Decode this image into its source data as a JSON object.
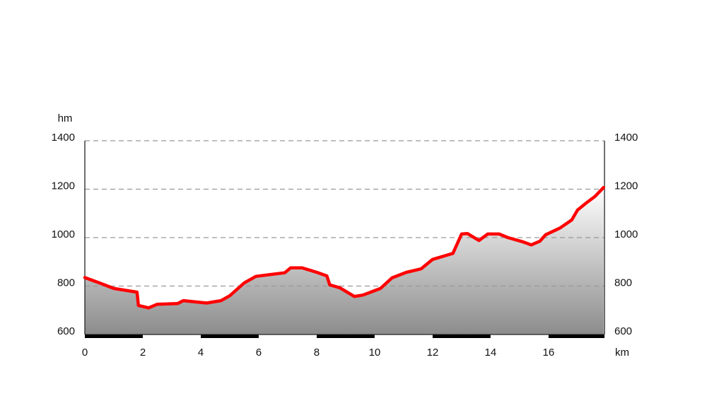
{
  "chart_data": {
    "type": "area",
    "y_label": "hm",
    "x_label": "km",
    "color": "#ff0000",
    "x": [
      0,
      0.5,
      1,
      1.8,
      1.85,
      2.2,
      2.5,
      3.2,
      3.4,
      4.2,
      4.7,
      5.0,
      5.5,
      5.9,
      6.9,
      7.1,
      7.5,
      8.0,
      8.35,
      8.45,
      8.8,
      9.3,
      9.6,
      10.2,
      10.6,
      11.1,
      11.6,
      12.0,
      12.7,
      13.0,
      13.2,
      13.6,
      13.9,
      14.3,
      14.6,
      15.1,
      15.4,
      15.7,
      15.9,
      16.4,
      16.8,
      17.0,
      17.3,
      17.6,
      17.9
    ],
    "values": [
      835,
      813,
      790,
      775,
      720,
      710,
      725,
      728,
      740,
      730,
      740,
      760,
      813,
      840,
      855,
      875,
      875,
      857,
      842,
      805,
      793,
      757,
      763,
      790,
      834,
      857,
      871,
      910,
      935,
      1015,
      1017,
      988,
      1015,
      1015,
      1000,
      983,
      970,
      985,
      1012,
      1040,
      1073,
      1114,
      1143,
      1170,
      1207
    ],
    "xlim": [
      0,
      17.93
    ],
    "xticks": [
      0,
      2,
      4,
      6,
      8,
      10,
      12,
      14,
      16
    ],
    "ylim": [
      600,
      1400
    ],
    "yticks": [
      600,
      800,
      1000,
      1200,
      1400
    ],
    "grid": true
  }
}
